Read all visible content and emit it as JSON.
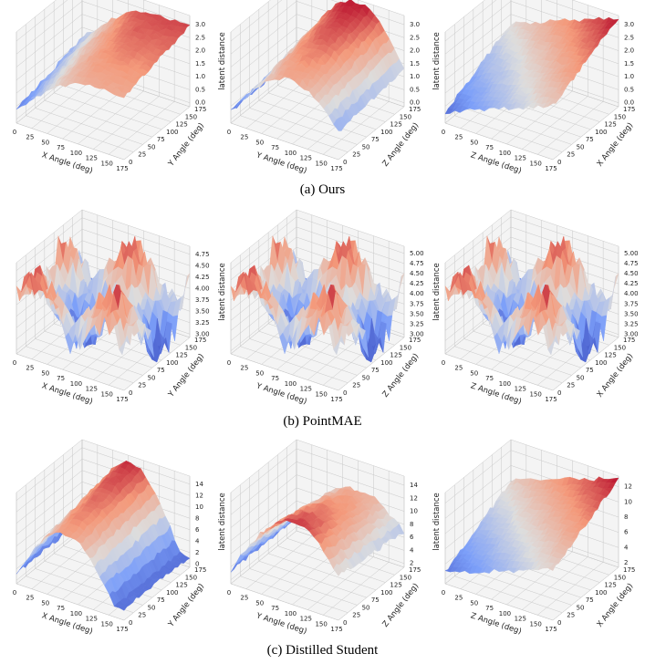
{
  "figure": {
    "colormap": "coolwarm",
    "colors": {
      "low": "#3b4cc0",
      "mid": "#dddddd",
      "high": "#b40426",
      "grid": "#c8c8c8",
      "pane": "#f4f4f4"
    },
    "rows": [
      {
        "caption": "(a) Ours",
        "panels": [
          {
            "xlabel": "X Angle (deg)",
            "ylabel": "Y Angle (deg)",
            "zlabel": "latent distance",
            "xticks": [
              "0",
              "25",
              "50",
              "75",
              "100",
              "125",
              "150",
              "175"
            ],
            "yticks": [
              "0",
              "25",
              "50",
              "75",
              "100",
              "125",
              "150",
              "175"
            ],
            "zticks": [
              "0.0",
              "0.5",
              "1.0",
              "1.5",
              "2.0",
              "2.5",
              "3.0"
            ],
            "zlim": [
              0,
              3.2
            ],
            "surface": "smooth-a1"
          },
          {
            "xlabel": "Y Angle (deg)",
            "ylabel": "Z Angle (deg)",
            "zlabel": "latent distance",
            "xticks": [
              "0",
              "25",
              "50",
              "75",
              "100",
              "125",
              "150",
              "175"
            ],
            "yticks": [
              "0",
              "25",
              "50",
              "75",
              "100",
              "125",
              "150",
              "175"
            ],
            "zticks": [
              "0.0",
              "0.5",
              "1.0",
              "1.5",
              "2.0",
              "2.5",
              "3.0"
            ],
            "zlim": [
              0,
              3.2
            ],
            "surface": "smooth-a2"
          },
          {
            "xlabel": "Z Angle (deg)",
            "ylabel": "X Angle (deg)",
            "zlabel": "",
            "xticks": [
              "0",
              "25",
              "50",
              "75",
              "100",
              "125",
              "150",
              "175"
            ],
            "yticks": [
              "0",
              "25",
              "50",
              "75",
              "100",
              "125",
              "150",
              "175"
            ],
            "zticks": [
              "0.0",
              "0.5",
              "1.0",
              "1.5",
              "2.0",
              "2.5",
              "3.0"
            ],
            "zlim": [
              0,
              3.2
            ],
            "surface": "smooth-a3"
          }
        ]
      },
      {
        "caption": "(b) PointMAE",
        "panels": [
          {
            "xlabel": "X Angle (deg)",
            "ylabel": "Y Angle (deg)",
            "zlabel": "latent distance",
            "xticks": [
              "0",
              "25",
              "50",
              "75",
              "100",
              "125",
              "150",
              "175"
            ],
            "yticks": [
              "0",
              "25",
              "50",
              "75",
              "100",
              "125",
              "150",
              "175"
            ],
            "zticks": [
              "3.00",
              "3.25",
              "3.50",
              "3.75",
              "4.00",
              "4.25",
              "4.50",
              "4.75"
            ],
            "zlim": [
              2.9,
              4.9
            ],
            "surface": "noisy"
          },
          {
            "xlabel": "Y Angle (deg)",
            "ylabel": "Z Angle (deg)",
            "zlabel": "latent distance",
            "xticks": [
              "0",
              "25",
              "50",
              "75",
              "100",
              "125",
              "150",
              "175"
            ],
            "yticks": [
              "0",
              "25",
              "50",
              "75",
              "100",
              "125",
              "150",
              "175"
            ],
            "zticks": [
              "3.00",
              "3.25",
              "3.50",
              "3.75",
              "4.00",
              "4.25",
              "4.50",
              "4.75",
              "5.00"
            ],
            "zlim": [
              2.9,
              5.05
            ],
            "surface": "noisy"
          },
          {
            "xlabel": "Z Angle (deg)",
            "ylabel": "X Angle (deg)",
            "zlabel": "",
            "xticks": [
              "0",
              "25",
              "50",
              "75",
              "100",
              "125",
              "150",
              "175"
            ],
            "yticks": [
              "0",
              "25",
              "50",
              "75",
              "100",
              "125",
              "150",
              "175"
            ],
            "zticks": [
              "3.00",
              "3.25",
              "3.50",
              "3.75",
              "4.00",
              "4.25",
              "4.50",
              "4.75",
              "5.00"
            ],
            "zlim": [
              2.9,
              5.05
            ],
            "surface": "noisy"
          }
        ]
      },
      {
        "caption": "(c) Distilled Student",
        "panels": [
          {
            "xlabel": "X Angle (deg)",
            "ylabel": "Y Angle (deg)",
            "zlabel": "latent distance",
            "xticks": [
              "0",
              "25",
              "50",
              "75",
              "100",
              "125",
              "150",
              "175"
            ],
            "yticks": [
              "0",
              "25",
              "50",
              "75",
              "100",
              "125",
              "150",
              "175"
            ],
            "zticks": [
              "0",
              "2",
              "4",
              "6",
              "8",
              "10",
              "12",
              "14"
            ],
            "zlim": [
              0,
              14.5
            ],
            "surface": "smooth-c1"
          },
          {
            "xlabel": "Y Angle (deg)",
            "ylabel": "Z Angle (deg)",
            "zlabel": "latent distance",
            "xticks": [
              "0",
              "25",
              "50",
              "75",
              "100",
              "125",
              "150",
              "175"
            ],
            "yticks": [
              "0",
              "25",
              "50",
              "75",
              "100",
              "125",
              "150",
              "175"
            ],
            "zticks": [
              "2",
              "4",
              "6",
              "8",
              "10",
              "12",
              "14"
            ],
            "zlim": [
              0.8,
              14.5
            ],
            "surface": "smooth-c2"
          },
          {
            "xlabel": "Z Angle (deg)",
            "ylabel": "X Angle (deg)",
            "zlabel": "",
            "xticks": [
              "0",
              "25",
              "50",
              "75",
              "100",
              "125",
              "150",
              "175"
            ],
            "yticks": [
              "0",
              "25",
              "50",
              "75",
              "100",
              "125",
              "150",
              "175"
            ],
            "zticks": [
              "2",
              "4",
              "6",
              "8",
              "10",
              "12"
            ],
            "zlim": [
              0.8,
              12.8
            ],
            "surface": "smooth-c3"
          }
        ]
      }
    ]
  },
  "chart_data": {
    "type": "surface-3d",
    "layout": "3x3 grid of 3D surface plots",
    "colormap": "coolwarm",
    "panels_note": "each panel: z = latent distance over a pair of rotation angles (0-175 deg)",
    "rows": [
      "(a) Ours",
      "(b) PointMAE",
      "(c) Distilled Student"
    ]
  }
}
